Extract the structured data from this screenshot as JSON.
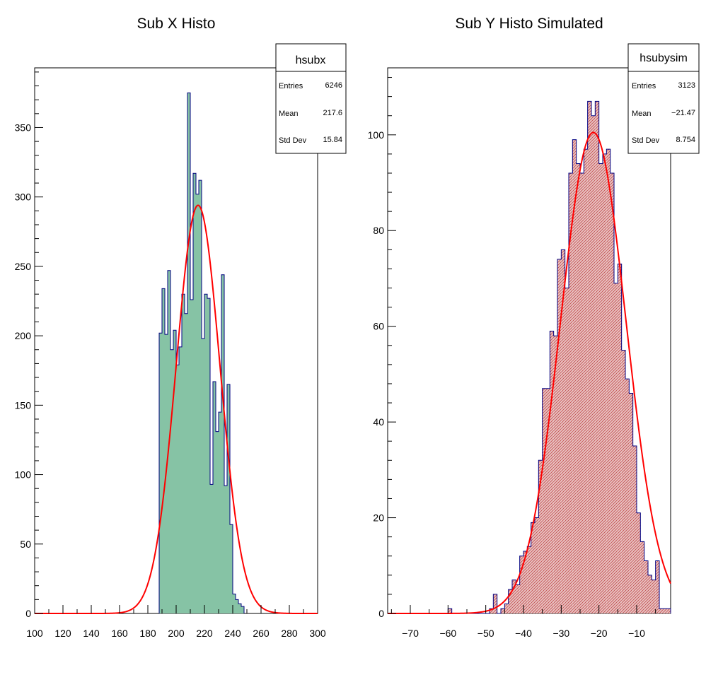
{
  "chart_data": [
    {
      "type": "bar",
      "name": "hsubx",
      "title": "Sub X Histo",
      "xlabel": "",
      "ylabel": "",
      "xlim": [
        100,
        300
      ],
      "ylim": [
        0,
        393
      ],
      "x_ticks": [
        100,
        120,
        140,
        160,
        180,
        200,
        220,
        240,
        260,
        280,
        300
      ],
      "y_ticks": [
        0,
        50,
        100,
        150,
        200,
        250,
        300,
        350
      ],
      "bin_edges_start": 188,
      "bin_width": 2,
      "values": [
        202,
        234,
        201,
        247,
        190,
        204,
        179,
        192,
        230,
        216,
        375,
        226,
        317,
        302,
        312,
        198,
        230,
        227,
        93,
        167,
        131,
        145,
        244,
        92,
        165,
        64,
        14,
        10,
        7,
        5
      ],
      "fit": {
        "type": "gauss",
        "amplitude": 294,
        "mean": 215.5,
        "sigma": 15.5,
        "color": "#ff0000"
      },
      "fill_color": "#86c3a5",
      "line_color": "#000080",
      "stats": {
        "title": "hsubx",
        "rows": [
          {
            "label": "Entries",
            "value": "6246"
          },
          {
            "label": "Mean",
            "value": "217.6"
          },
          {
            "label": "Std Dev",
            "value": "15.84"
          }
        ]
      },
      "grid": false
    },
    {
      "type": "bar",
      "name": "hsubysim",
      "title": "Sub Y Histo Simulated",
      "xlabel": "",
      "ylabel": "",
      "xlim": [
        -76,
        -1
      ],
      "ylim": [
        0,
        114
      ],
      "x_ticks": [
        -70,
        -60,
        -50,
        -40,
        -30,
        -20,
        -10
      ],
      "x_tick_labels": [
        "−70",
        "−60",
        "−50",
        "−40",
        "−30",
        "−20",
        "−10"
      ],
      "y_ticks": [
        0,
        20,
        40,
        60,
        80,
        100
      ],
      "bin_edges_start": -76,
      "bin_width": 1,
      "values": [
        0,
        0,
        0,
        0,
        0,
        0,
        0,
        0,
        0,
        0,
        0,
        0,
        0,
        0,
        0,
        0,
        1,
        0,
        0,
        0,
        0,
        0,
        0,
        0,
        0,
        0,
        0,
        1,
        4,
        0,
        1,
        2,
        5,
        7,
        6,
        12,
        13,
        14,
        19,
        20,
        32,
        47,
        47,
        59,
        58,
        74,
        76,
        68,
        92,
        99,
        94,
        92,
        97,
        107,
        104,
        107,
        94,
        96,
        97,
        92,
        69,
        73,
        55,
        49,
        46,
        35,
        21,
        15,
        11,
        8,
        7,
        11,
        1,
        1,
        1
      ],
      "fit": {
        "type": "gauss",
        "amplitude": 100.5,
        "mean": -21.5,
        "sigma": 8.7,
        "color": "#ff0000"
      },
      "fill_color": "#e8b8b8",
      "hatch_color": "#cc4444",
      "line_color": "#000080",
      "stats": {
        "title": "hsubysim",
        "rows": [
          {
            "label": "Entries",
            "value": "3123"
          },
          {
            "label": "Mean",
            "value": "−21.47"
          },
          {
            "label": "Std Dev",
            "value": "8.754"
          }
        ]
      },
      "grid": false
    }
  ]
}
